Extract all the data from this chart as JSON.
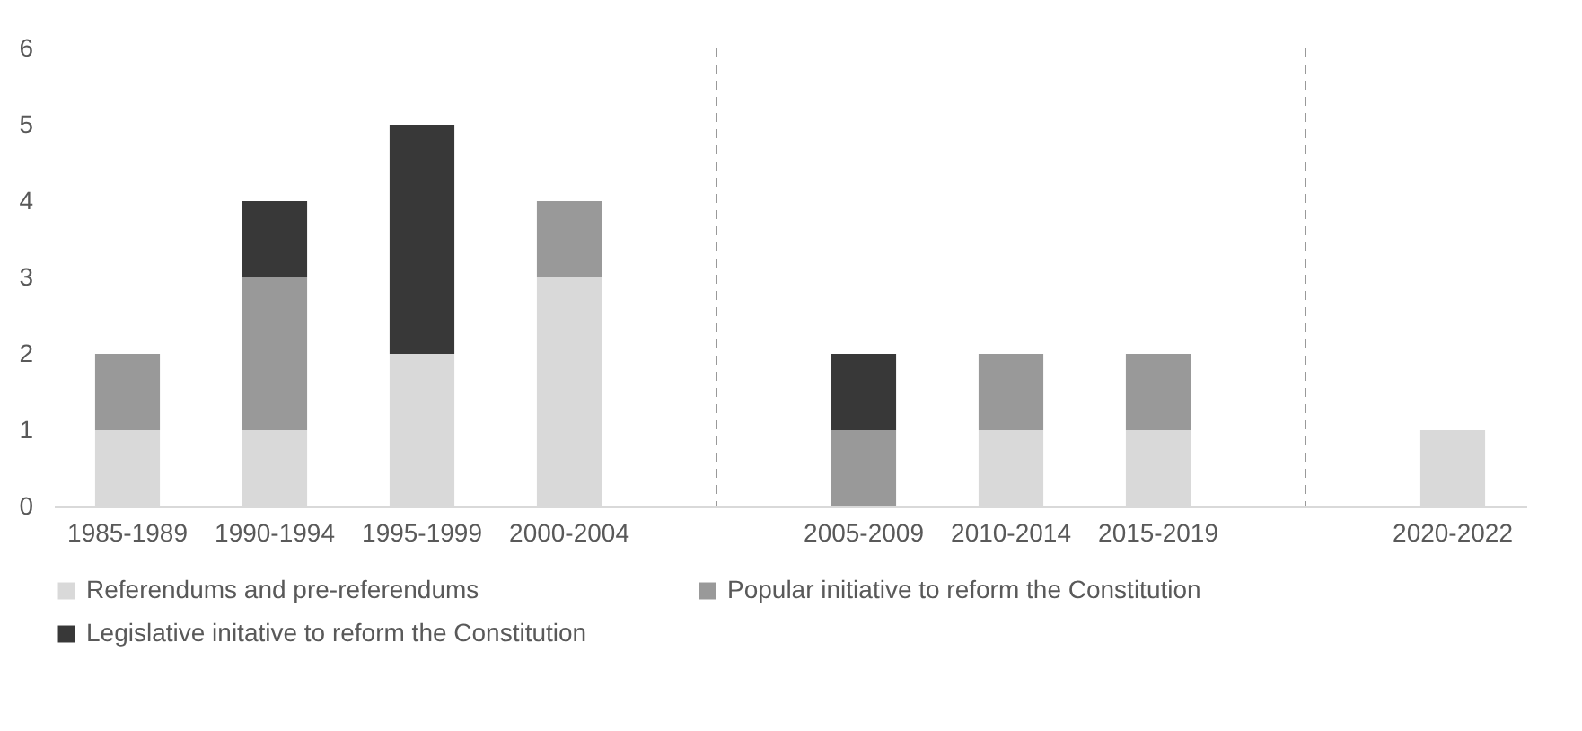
{
  "chart_data": {
    "type": "bar",
    "stacked": true,
    "categories": [
      "1985-1989",
      "1990-1994",
      "1995-1999",
      "2000-2004",
      null,
      "2005-2009",
      "2010-2014",
      "2015-2019",
      null,
      "2020-2022"
    ],
    "series": [
      {
        "name": "Referendums and pre-referendums",
        "color": "#d9d9d9",
        "values": [
          1,
          1,
          2,
          3,
          null,
          0,
          1,
          1,
          null,
          1
        ]
      },
      {
        "name": "Popular initiative to reform the Constitution",
        "color": "#999999",
        "values": [
          1,
          2,
          0,
          1,
          null,
          1,
          1,
          1,
          null,
          0
        ]
      },
      {
        "name": "Legislative initative to reform the Constitution",
        "color": "#383838",
        "values": [
          0,
          1,
          3,
          0,
          null,
          1,
          0,
          0,
          null,
          0
        ]
      }
    ],
    "ylim": [
      0,
      6
    ],
    "yticks": [
      0,
      1,
      2,
      3,
      4,
      5,
      6
    ],
    "legend": "bottom"
  }
}
